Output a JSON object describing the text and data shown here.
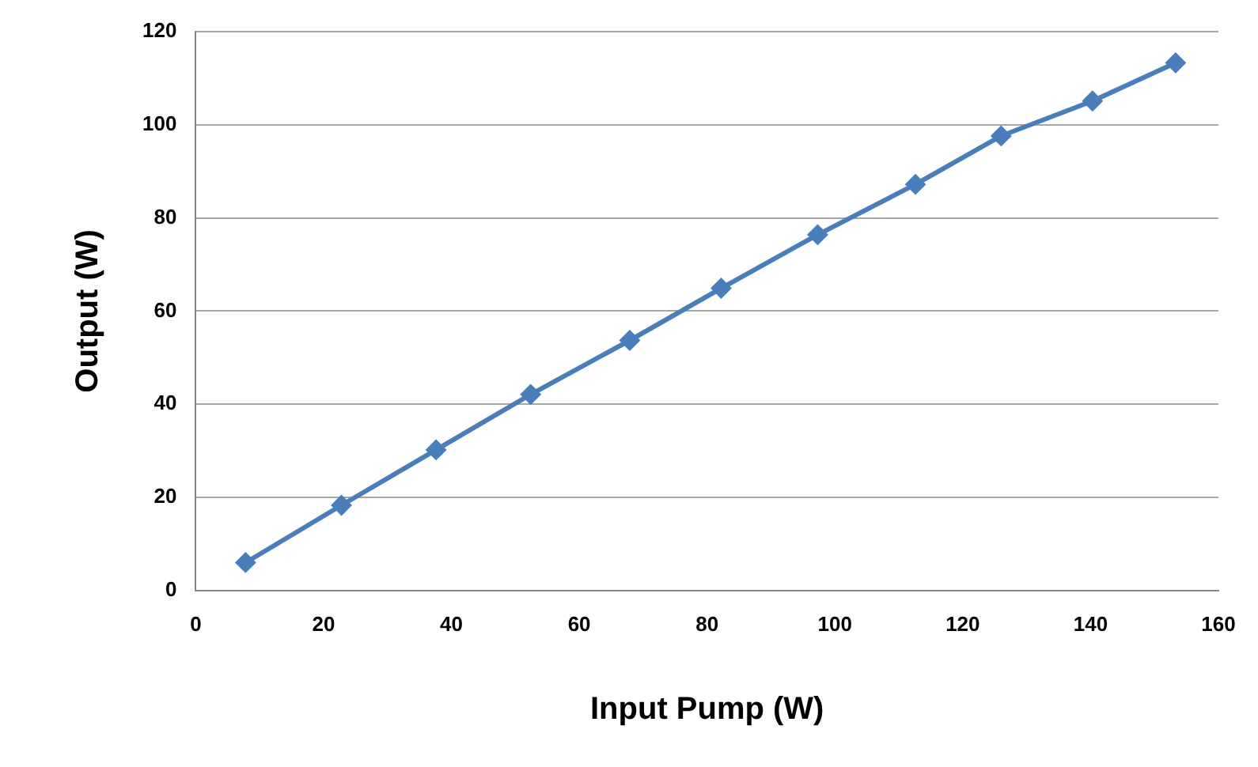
{
  "chart_data": {
    "type": "line",
    "xlabel": "Input Pump (W)",
    "ylabel": "Output (W)",
    "x": [
      7.8,
      22.8,
      37.6,
      52.4,
      67.9,
      82.2,
      97.3,
      112.6,
      126,
      140.3,
      153.3
    ],
    "series": [
      {
        "color": "#4a7ebb",
        "values": [
          6,
          18.3,
          30.2,
          42.1,
          53.7,
          64.9,
          76.4,
          87.2,
          97.6,
          105.1,
          113.3
        ]
      }
    ],
    "xlim": [
      0,
      160
    ],
    "xticks": [
      0,
      20,
      40,
      60,
      80,
      100,
      120,
      140,
      160
    ],
    "ylim": [
      0,
      120
    ],
    "yticks": [
      0,
      20,
      40,
      60,
      80,
      100,
      120
    ],
    "grid": "y",
    "legend": false,
    "marker": "diamond",
    "line_style": "solid"
  }
}
